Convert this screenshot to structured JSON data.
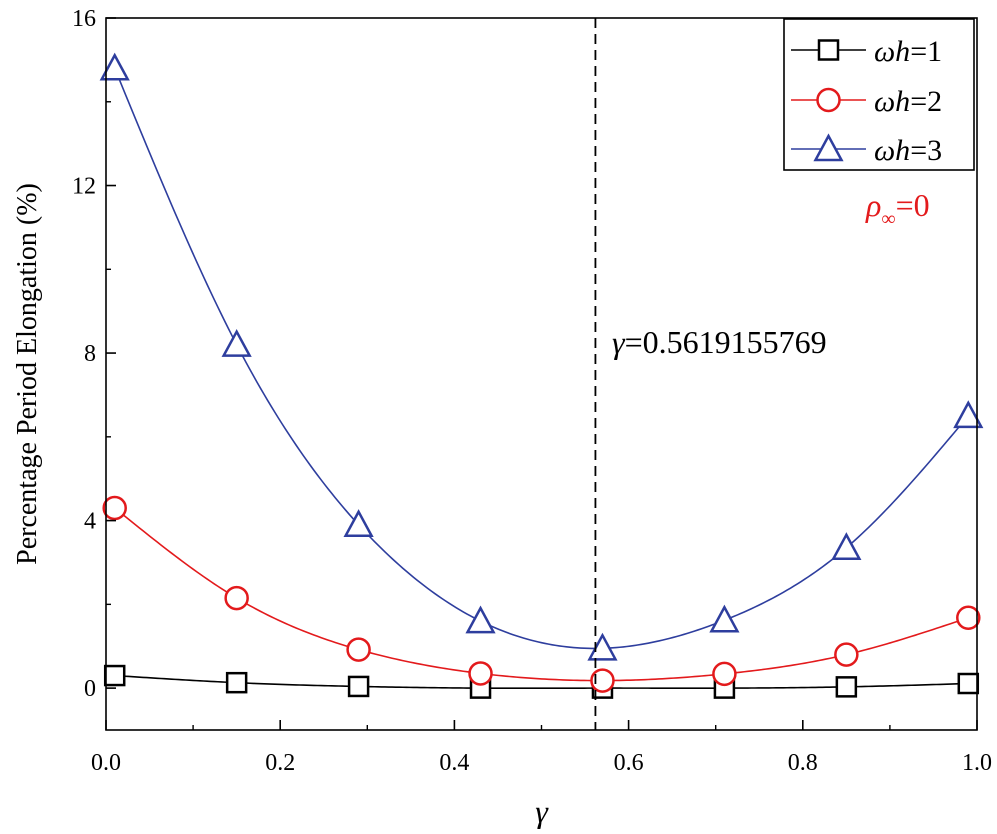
{
  "chart_data": {
    "type": "line",
    "title": "",
    "xlabel": "γ",
    "ylabel": "Percentage Period Elongation (%)",
    "xlim": [
      0.0,
      1.0
    ],
    "ylim": [
      -1.0,
      16.0
    ],
    "xticks": [
      0.0,
      0.2,
      0.4,
      0.6,
      0.8,
      1.0
    ],
    "xtick_labels": [
      "0.0",
      "0.2",
      "0.4",
      "0.6",
      "0.8",
      "1.0"
    ],
    "yticks": [
      0,
      4,
      8,
      12,
      16
    ],
    "ytick_labels": [
      "0",
      "4",
      "8",
      "12",
      "16"
    ],
    "grid": false,
    "legend_position": "top-right",
    "x": [
      0.01,
      0.15,
      0.29,
      0.43,
      0.57,
      0.71,
      0.85,
      0.99
    ],
    "series": [
      {
        "name": "ωh=1",
        "legend_var": "ωh",
        "legend_value": "=1",
        "color": "#000000",
        "marker": "square",
        "values": [
          0.3,
          0.13,
          0.04,
          0.0,
          0.0,
          0.0,
          0.03,
          0.11
        ]
      },
      {
        "name": "ωh=2",
        "legend_var": "ωh",
        "legend_value": "=2",
        "color": "#e31a1c",
        "marker": "circle",
        "values": [
          4.3,
          2.15,
          0.92,
          0.35,
          0.18,
          0.34,
          0.8,
          1.68
        ]
      },
      {
        "name": "ωh=3",
        "legend_var": "ωh",
        "legend_value": "=3",
        "color": "#2e3e9e",
        "marker": "triangle",
        "values": [
          14.8,
          8.2,
          3.9,
          1.6,
          0.95,
          1.62,
          3.35,
          6.5
        ]
      }
    ],
    "annotations": [
      {
        "id": "gamma-optimal",
        "symbol": "γ",
        "text": "=0.5619155769",
        "x": 0.5619155769,
        "line": "dashed-vertical",
        "color": "#000000"
      },
      {
        "id": "rho-infinity",
        "symbol": "ρ",
        "subscript": "∞",
        "text": "=0",
        "color": "#e31a1c"
      }
    ]
  }
}
